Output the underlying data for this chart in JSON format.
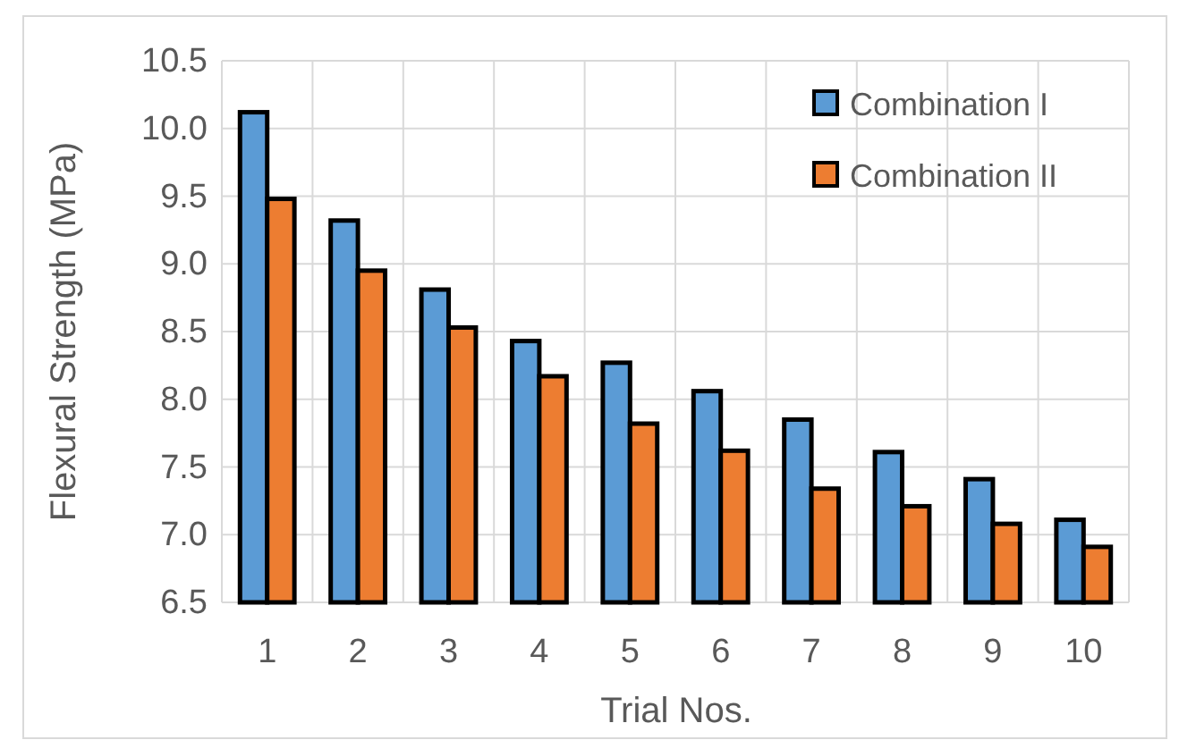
{
  "chart_data": {
    "type": "bar",
    "xlabel": "Trial Nos.",
    "ylabel": "Flexural Strength (MPa)",
    "categories": [
      "1",
      "2",
      "3",
      "4",
      "5",
      "6",
      "7",
      "8",
      "9",
      "10"
    ],
    "series": [
      {
        "name": "Combination I",
        "color": "#5b9bd5",
        "values": [
          10.12,
          9.32,
          8.81,
          8.43,
          8.27,
          8.06,
          7.85,
          7.61,
          7.41,
          7.11
        ]
      },
      {
        "name": "Combination II",
        "color": "#ed7d31",
        "values": [
          9.48,
          8.95,
          8.53,
          8.17,
          7.82,
          7.62,
          7.34,
          7.21,
          7.08,
          6.91
        ]
      }
    ],
    "ylim": [
      6.5,
      10.5
    ],
    "yticks": [
      {
        "value": 6.5,
        "label": "6.5"
      },
      {
        "value": 7,
        "label": "7.0"
      },
      {
        "value": 7.5,
        "label": "7.5"
      },
      {
        "value": 8,
        "label": "8.0"
      },
      {
        "value": 8.5,
        "label": "8.5"
      },
      {
        "value": 9,
        "label": "9.0"
      },
      {
        "value": 9.5,
        "label": "9.5"
      },
      {
        "value": 10,
        "label": "10.0"
      },
      {
        "value": 10.5,
        "label": "10.5"
      }
    ],
    "grid": true,
    "legend": "top right"
  }
}
